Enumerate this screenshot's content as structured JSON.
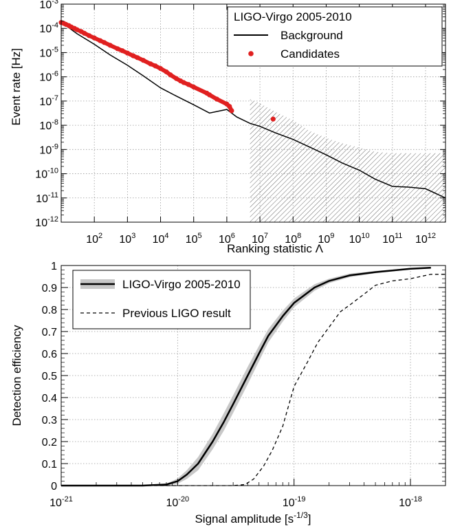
{
  "chart_data": [
    {
      "type": "scatter",
      "title": "",
      "xlabel": "Ranking statistic Λ",
      "ylabel": "Event rate [Hz]",
      "xscale": "log",
      "yscale": "log",
      "xlim": [
        10,
        4000000000000.0
      ],
      "ylim": [
        1e-12,
        0.001
      ],
      "x_tick_labels": [
        {
          "v": 100,
          "base": "10",
          "exp": "2"
        },
        {
          "v": 1000,
          "base": "10",
          "exp": "3"
        },
        {
          "v": 10000,
          "base": "10",
          "exp": "4"
        },
        {
          "v": 100000,
          "base": "10",
          "exp": "5"
        },
        {
          "v": 1000000,
          "base": "10",
          "exp": "6"
        },
        {
          "v": 10000000,
          "base": "10",
          "exp": "7"
        },
        {
          "v": 100000000,
          "base": "10",
          "exp": "8"
        },
        {
          "v": 1000000000,
          "base": "10",
          "exp": "9"
        },
        {
          "v": 10000000000,
          "base": "10",
          "exp": "10"
        },
        {
          "v": 100000000000,
          "base": "10",
          "exp": "11"
        },
        {
          "v": 1000000000000,
          "base": "10",
          "exp": "12"
        }
      ],
      "y_tick_labels": [
        {
          "v": 1e-12,
          "base": "10",
          "exp": "-12"
        },
        {
          "v": 1e-11,
          "base": "10",
          "exp": "-11"
        },
        {
          "v": 1e-10,
          "base": "10",
          "exp": "-10"
        },
        {
          "v": 1e-09,
          "base": "10",
          "exp": "-9"
        },
        {
          "v": 1e-08,
          "base": "10",
          "exp": "-8"
        },
        {
          "v": 1e-07,
          "base": "10",
          "exp": "-7"
        },
        {
          "v": 1e-06,
          "base": "10",
          "exp": "-6"
        },
        {
          "v": 1e-05,
          "base": "10",
          "exp": "-5"
        },
        {
          "v": 0.0001,
          "base": "10",
          "exp": "-4"
        },
        {
          "v": 0.001,
          "base": "10",
          "exp": "-3"
        }
      ],
      "grid": true,
      "legend_position": "top-right",
      "legend_title": "LIGO-Virgo 2005-2010",
      "series": [
        {
          "name": "Background",
          "type": "line",
          "color": "#000000",
          "x": [
            10,
            30,
            100,
            300,
            1000,
            3000,
            10000,
            30000,
            100000,
            300000,
            1000000,
            2000000,
            5000000,
            10000000,
            30000000,
            100000000,
            300000000,
            1000000000,
            3000000000,
            10000000000,
            30000000000,
            100000000000,
            300000000000,
            1000000000000,
            4000000000000
          ],
          "y": [
            0.00018,
            6e-05,
            2.2e-05,
            8e-06,
            3e-06,
            1.1e-06,
            3.5e-07,
            1.6e-07,
            7e-08,
            3.2e-08,
            4.5e-08,
            2.2e-08,
            1.2e-08,
            9e-09,
            4.8e-09,
            2.6e-09,
            1.3e-09,
            6e-10,
            2.8e-10,
            1.4e-10,
            6e-11,
            3e-11,
            2.8e-11,
            2.4e-11,
            1e-11
          ]
        },
        {
          "name": "Candidates",
          "type": "scatter",
          "color": "#e02020",
          "x": [
            10,
            12,
            14,
            17,
            20,
            25,
            30,
            40,
            50,
            70,
            100,
            150,
            200,
            300,
            500,
            700,
            1000,
            1500,
            2000,
            3000,
            5000,
            7000,
            10000,
            15000,
            20000,
            30000,
            40000,
            50000,
            70000,
            100000,
            250000,
            300000,
            500000,
            1000000,
            1200000,
            1400000,
            25000000
          ],
          "y": [
            0.000175,
            0.00016,
            0.000145,
            0.00013,
            0.000115,
            0.0001,
            8.8e-05,
            7.4e-05,
            6.3e-05,
            5e-05,
            4e-05,
            3.1e-05,
            2.6e-05,
            2e-05,
            1.45e-05,
            1.2e-05,
            9.5e-06,
            7.4e-06,
            6.2e-06,
            4.8e-06,
            3.4e-06,
            2.8e-06,
            2.2e-06,
            1.6e-06,
            1.2e-06,
            8.5e-07,
            6.8e-07,
            5.8e-07,
            4.8e-07,
            3.8e-07,
            2.1e-07,
            1.8e-07,
            1.2e-07,
            7.5e-08,
            6e-08,
            4e-08,
            1.8e-08
          ]
        }
      ],
      "band": {
        "x": [
          5000000,
          10000000,
          30000000,
          100000000,
          300000000,
          1000000000,
          3000000000,
          10000000000,
          30000000000,
          100000000000,
          1000000000000,
          4000000000000
        ],
        "upper": [
          1.2e-07,
          8e-08,
          3.5e-08,
          1.6e-08,
          6e-09,
          3e-09,
          1.8e-09,
          1.2e-09,
          8e-10,
          7e-10,
          7e-10,
          7e-10
        ],
        "lower": [
          1e-12,
          1e-12,
          1e-12,
          1e-12,
          1e-12,
          1e-12,
          1e-12,
          1e-12,
          1e-12,
          1e-12,
          1e-12,
          1e-12
        ]
      }
    },
    {
      "type": "line",
      "title": "",
      "xlabel": "Signal amplitude [s",
      "xlabel_sup": "-1/3",
      "xlabel_suffix": "]",
      "ylabel": "Detection efficiency",
      "xscale": "log",
      "xlim": [
        1e-21,
        2e-18
      ],
      "ylim": [
        0,
        1
      ],
      "x_tick_labels": [
        {
          "v": 1e-21,
          "base": "10",
          "exp": "-21"
        },
        {
          "v": 1e-20,
          "base": "10",
          "exp": "-20"
        },
        {
          "v": 1e-19,
          "base": "10",
          "exp": "-19"
        },
        {
          "v": 1e-18,
          "base": "10",
          "exp": "-18"
        }
      ],
      "y_ticks": [
        {
          "v": 0,
          "label": "0"
        },
        {
          "v": 0.1,
          "label": "0.1"
        },
        {
          "v": 0.2,
          "label": "0.2"
        },
        {
          "v": 0.3,
          "label": "0.3"
        },
        {
          "v": 0.4,
          "label": "0.4"
        },
        {
          "v": 0.5,
          "label": "0.5"
        },
        {
          "v": 0.6,
          "label": "0.6"
        },
        {
          "v": 0.7,
          "label": "0.7"
        },
        {
          "v": 0.8,
          "label": "0.8"
        },
        {
          "v": 0.9,
          "label": "0.9"
        },
        {
          "v": 1,
          "label": "1"
        }
      ],
      "grid": true,
      "legend_position": "top-left",
      "series": [
        {
          "name": "LIGO-Virgo 2005-2010",
          "style": "solid",
          "color": "#000000",
          "band_color": "#c8c8c8",
          "x": [
            1e-21,
            5e-21,
            8e-21,
            1e-20,
            1.2e-20,
            1.5e-20,
            2e-20,
            2.5e-20,
            3e-20,
            4e-20,
            5e-20,
            6e-20,
            8e-20,
            1e-19,
            1.5e-19,
            2e-19,
            3e-19,
            5e-19,
            1e-18,
            1.5e-18
          ],
          "y": [
            0,
            0,
            0.005,
            0.02,
            0.05,
            0.1,
            0.2,
            0.29,
            0.37,
            0.5,
            0.6,
            0.68,
            0.77,
            0.83,
            0.9,
            0.93,
            0.955,
            0.97,
            0.985,
            0.99
          ],
          "band_width": [
            0,
            0,
            0.004,
            0.012,
            0.02,
            0.03,
            0.035,
            0.04,
            0.04,
            0.04,
            0.035,
            0.03,
            0.025,
            0.02,
            0.015,
            0.01,
            0.008,
            0.005,
            0.003,
            0.002
          ]
        },
        {
          "name": "Previous LIGO result",
          "style": "dashed",
          "color": "#000000",
          "x": [
            1e-21,
            3e-20,
            3.8e-20,
            4.5e-20,
            5.5e-20,
            6.5e-20,
            8e-20,
            1e-19,
            1.3e-19,
            1.6e-19,
            2e-19,
            2.5e-19,
            3e-19,
            4e-19,
            5e-19,
            7e-19,
            1e-18,
            1.5e-18,
            2e-18
          ],
          "y": [
            0,
            0,
            0.005,
            0.03,
            0.09,
            0.16,
            0.27,
            0.45,
            0.56,
            0.65,
            0.72,
            0.79,
            0.82,
            0.87,
            0.91,
            0.93,
            0.94,
            0.96,
            0.96
          ]
        }
      ]
    }
  ]
}
